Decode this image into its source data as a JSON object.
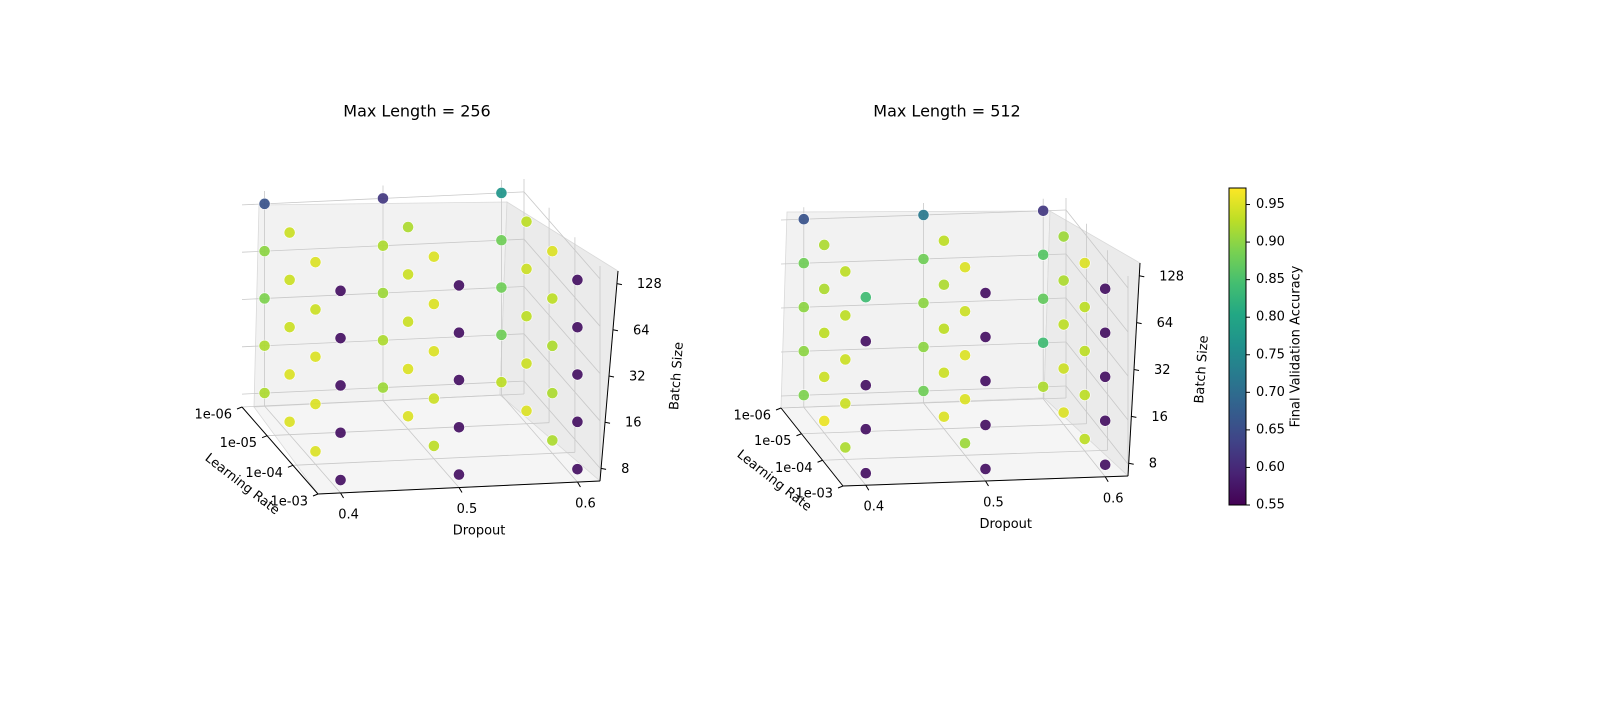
{
  "chart_data": [
    {
      "type": "scatter",
      "title": "Max Length = 256",
      "xlabel": "Dropout",
      "ylabel": "Learning Rate",
      "zlabel": "Batch Size",
      "x_ticks": [
        "0.4",
        "0.5",
        "0.6"
      ],
      "y_ticks": [
        "1e-06",
        "1e-05",
        "1e-04",
        "1e-03"
      ],
      "z_ticks": [
        "8",
        "16",
        "32",
        "64",
        "128"
      ],
      "dropout_values": [
        0.4,
        0.5,
        0.6
      ],
      "learning_rate_values": [
        1e-06,
        1e-05,
        0.0001,
        0.001
      ],
      "batch_size_values": [
        8,
        16,
        32,
        64,
        128
      ],
      "accuracy": {
        "0.4": [
          [
            0.92,
            0.95,
            0.95,
            0.57
          ],
          [
            0.92,
            0.95,
            0.95,
            0.57
          ],
          [
            0.89,
            0.94,
            0.95,
            0.57
          ],
          [
            0.9,
            0.94,
            0.94,
            0.57
          ],
          [
            0.66,
            0.94,
            0.95,
            0.57
          ]
        ],
        "0.5": [
          [
            0.91,
            0.95,
            0.93,
            0.57
          ],
          [
            0.92,
            0.95,
            0.94,
            0.57
          ],
          [
            0.91,
            0.94,
            0.95,
            0.57
          ],
          [
            0.92,
            0.94,
            0.95,
            0.57
          ],
          [
            0.62,
            0.92,
            0.95,
            0.57
          ]
        ],
        "0.6": [
          [
            0.93,
            0.95,
            0.92,
            0.57
          ],
          [
            0.88,
            0.94,
            0.92,
            0.57
          ],
          [
            0.88,
            0.93,
            0.92,
            0.57
          ],
          [
            0.88,
            0.94,
            0.93,
            0.57
          ],
          [
            0.77,
            0.93,
            0.95,
            0.57
          ]
        ]
      },
      "accuracy_layout": "per dropout: rows = batch sizes [8,16,32,64,128]; columns = learning rates [1e-06,1e-05,1e-04,1e-03]"
    },
    {
      "type": "scatter",
      "title": "Max Length = 512",
      "xlabel": "Dropout",
      "ylabel": "Learning Rate",
      "zlabel": "Batch Size",
      "x_ticks": [
        "0.4",
        "0.5",
        "0.6"
      ],
      "y_ticks": [
        "1e-06",
        "1e-05",
        "1e-04",
        "1e-03"
      ],
      "z_ticks": [
        "8",
        "16",
        "32",
        "64",
        "128"
      ],
      "dropout_values": [
        0.4,
        0.5,
        0.6
      ],
      "learning_rate_values": [
        1e-06,
        1e-05,
        0.0001,
        0.001
      ],
      "batch_size_values": [
        8,
        16,
        32,
        64,
        128
      ],
      "accuracy": {
        "0.4": [
          [
            0.89,
            0.96,
            0.92,
            0.57
          ],
          [
            0.9,
            0.94,
            0.94,
            0.57
          ],
          [
            0.9,
            0.93,
            0.94,
            0.57
          ],
          [
            0.88,
            0.92,
            0.93,
            0.57
          ],
          [
            0.66,
            0.92,
            0.93,
            0.84
          ]
        ],
        "0.5": [
          [
            0.88,
            0.95,
            0.91,
            0.57
          ],
          [
            0.9,
            0.94,
            0.95,
            0.57
          ],
          [
            0.9,
            0.93,
            0.95,
            0.57
          ],
          [
            0.88,
            0.92,
            0.94,
            0.57
          ],
          [
            0.72,
            0.93,
            0.95,
            0.57
          ]
        ],
        "0.6": [
          [
            0.92,
            0.95,
            0.93,
            0.57
          ],
          [
            0.84,
            0.94,
            0.93,
            0.57
          ],
          [
            0.87,
            0.93,
            0.93,
            0.57
          ],
          [
            0.86,
            0.92,
            0.93,
            0.57
          ],
          [
            0.62,
            0.91,
            0.95,
            0.57
          ]
        ]
      },
      "accuracy_layout": "per dropout: rows = batch sizes [8,16,32,64,128]; columns = learning rates [1e-06,1e-05,1e-04,1e-03]"
    }
  ],
  "colorbar": {
    "label": "Final Validation Accuracy",
    "ticks": [
      "0.55",
      "0.60",
      "0.65",
      "0.70",
      "0.75",
      "0.80",
      "0.85",
      "0.90",
      "0.95"
    ],
    "min": 0.55,
    "max": 0.972,
    "colormap": "viridis"
  }
}
